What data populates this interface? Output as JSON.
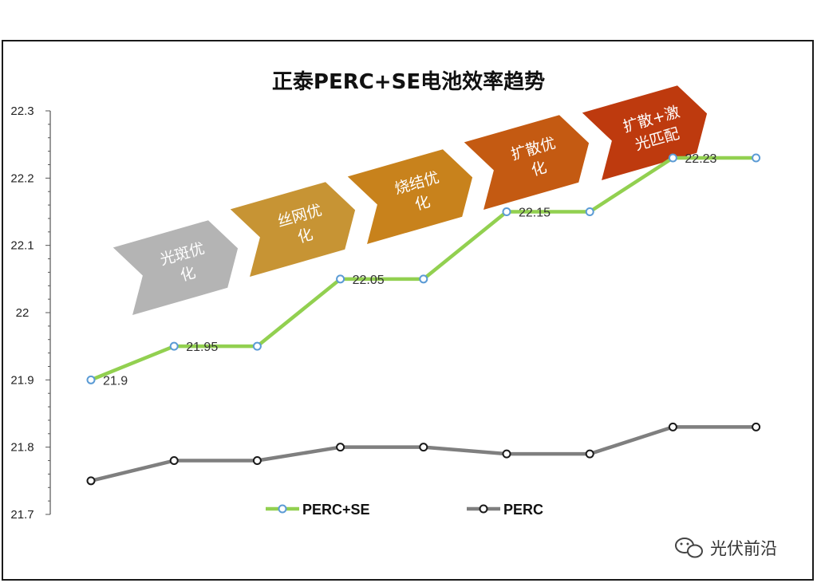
{
  "chart_data": {
    "type": "line",
    "title": "正泰PERC+SE电池效率趋势",
    "ylim": [
      21.7,
      22.3
    ],
    "yticks": [
      "21.7",
      "21.8",
      "21.9",
      "22",
      "22.1",
      "22.2",
      "22.3"
    ],
    "x_count": 9,
    "grid": false,
    "legend_position": "bottom",
    "series": [
      {
        "name": "PERC+SE",
        "color": "#92D050",
        "marker_color": "#5B9BD5",
        "values": [
          21.9,
          21.95,
          21.95,
          22.05,
          22.05,
          22.15,
          22.15,
          22.23,
          22.23
        ],
        "data_labels": [
          "21.9",
          "21.95",
          null,
          "22.05",
          null,
          "22.15",
          null,
          "22.23",
          null
        ]
      },
      {
        "name": "PERC",
        "color": "#7F7F7F",
        "marker_color": "#1a1a1a",
        "values": [
          21.75,
          21.78,
          21.78,
          21.8,
          21.8,
          21.79,
          21.79,
          21.83,
          21.83
        ],
        "data_labels": []
      }
    ],
    "annotations": [
      {
        "lines": [
          "光斑优",
          "化"
        ],
        "color": "#B4B4B4"
      },
      {
        "lines": [
          "丝网优",
          "化"
        ],
        "color": "#C79434"
      },
      {
        "lines": [
          "烧结优",
          "化"
        ],
        "color": "#C8821C"
      },
      {
        "lines": [
          "扩散优",
          "化"
        ],
        "color": "#C45A12"
      },
      {
        "lines": [
          "扩散+激",
          "光匹配"
        ],
        "color": "#BE3A0E"
      }
    ]
  },
  "watermark": {
    "text": "光伏前沿",
    "icon": "wechat-icon"
  }
}
